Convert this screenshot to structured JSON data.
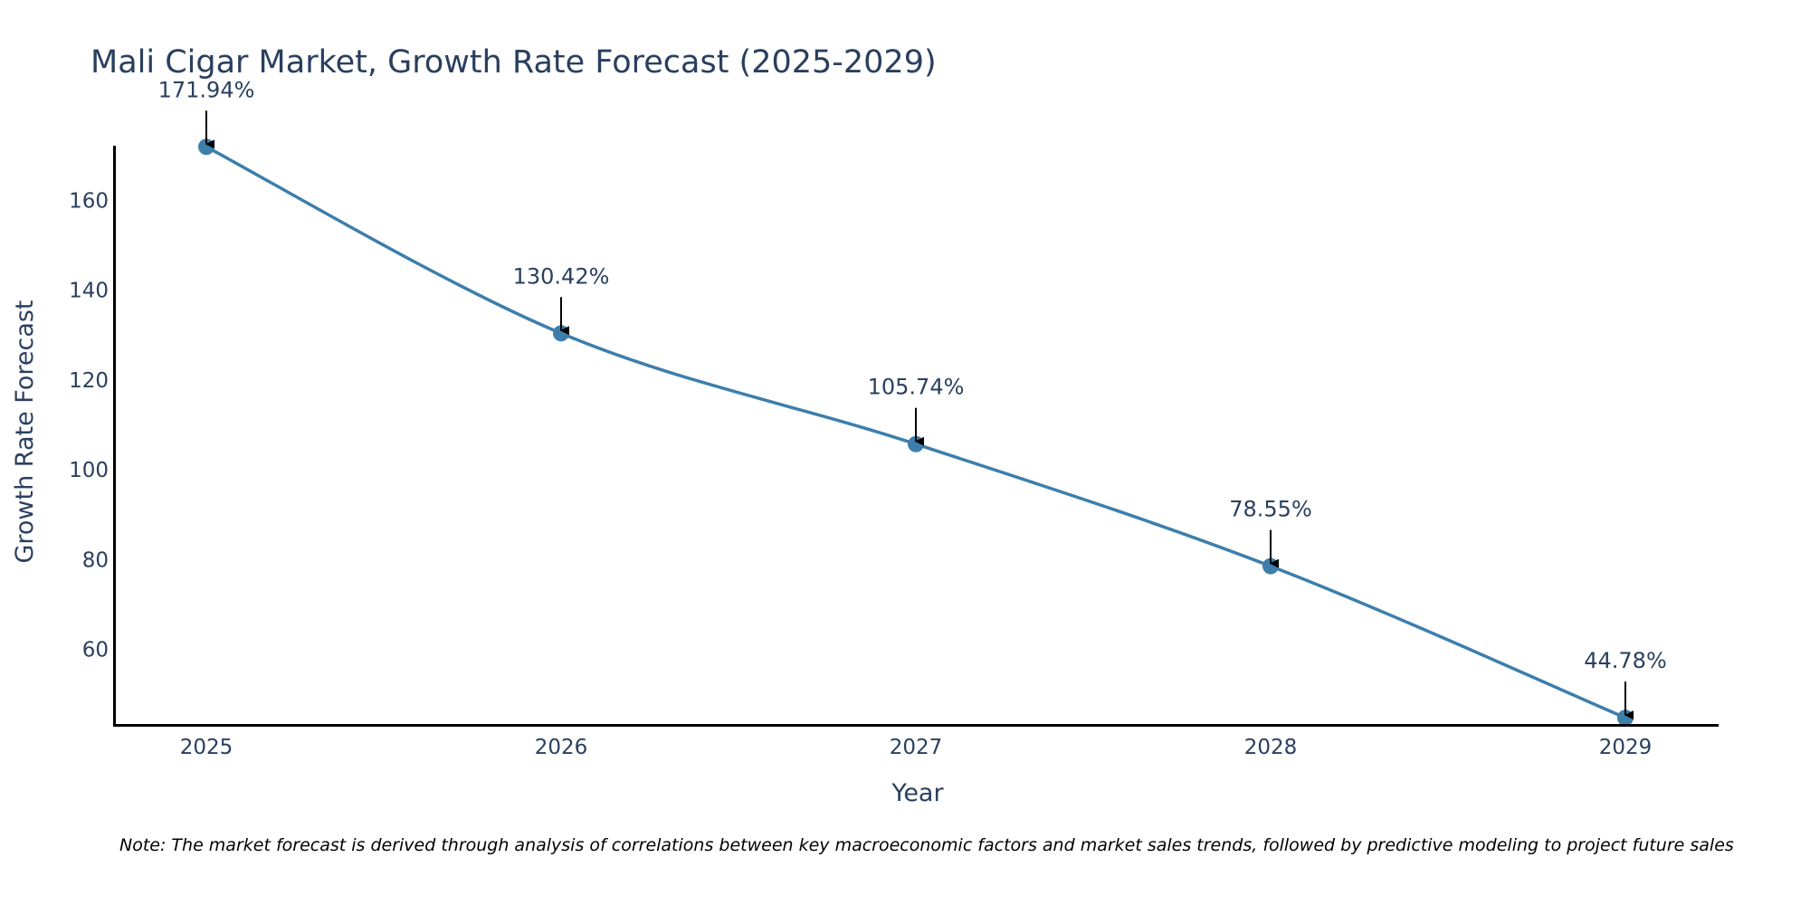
{
  "chart_data": {
    "type": "line",
    "title": "Mali Cigar Market, Growth Rate Forecast (2025-2029)",
    "xlabel": "Year",
    "ylabel": "Growth Rate Forecast",
    "x": [
      "2025",
      "2026",
      "2027",
      "2028",
      "2029"
    ],
    "series": [
      {
        "name": "Growth Rate Forecast",
        "values": [
          171.94,
          130.42,
          105.74,
          78.55,
          44.78
        ],
        "labels": [
          "171.94%",
          "130.42%",
          "105.74%",
          "78.55%",
          "44.78%"
        ],
        "color": "#3d7eab"
      }
    ],
    "yticks": [
      60,
      80,
      100,
      120,
      140,
      160
    ],
    "ytick_labels": [
      "60",
      "80",
      "100",
      "120",
      "140",
      "160"
    ],
    "ylim": [
      44,
      172.2
    ],
    "grid": false,
    "legend": "none"
  },
  "note": "Note: The market forecast is derived through analysis of correlations between key macroeconomic factors and market sales trends, followed by predictive modeling to project future sales",
  "colors": {
    "line": "#3d7eab",
    "text": "#2a3f5f",
    "axis": "#000000",
    "arrow": "#000000"
  }
}
